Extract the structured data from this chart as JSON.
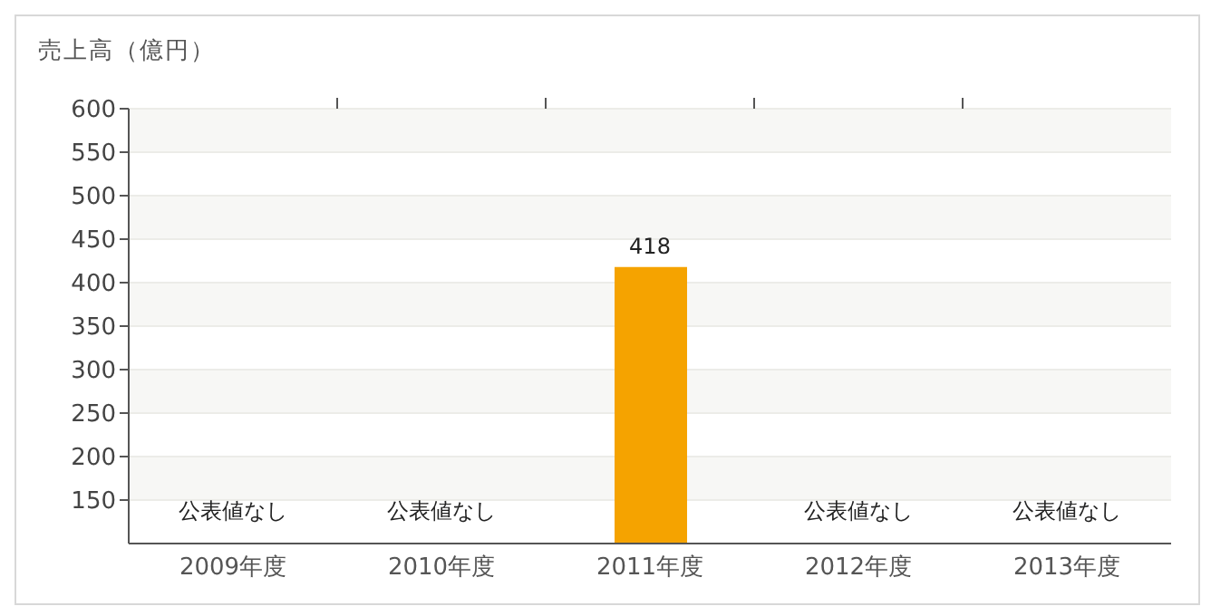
{
  "chart_data": {
    "type": "bar",
    "ylabel": "売上高（億円）",
    "categories": [
      "2009年度",
      "2010年度",
      "2011年度",
      "2012年度",
      "2013年度"
    ],
    "values": [
      null,
      null,
      418,
      null,
      null
    ],
    "value_labels": [
      "公表値なし",
      "公表値なし",
      "418",
      "公表値なし",
      "公表値なし"
    ],
    "color": "#f5a300",
    "ylim": [
      100,
      600
    ],
    "yticks": [
      150,
      200,
      250,
      300,
      350,
      400,
      450,
      500,
      550,
      600
    ],
    "grid": "y"
  }
}
